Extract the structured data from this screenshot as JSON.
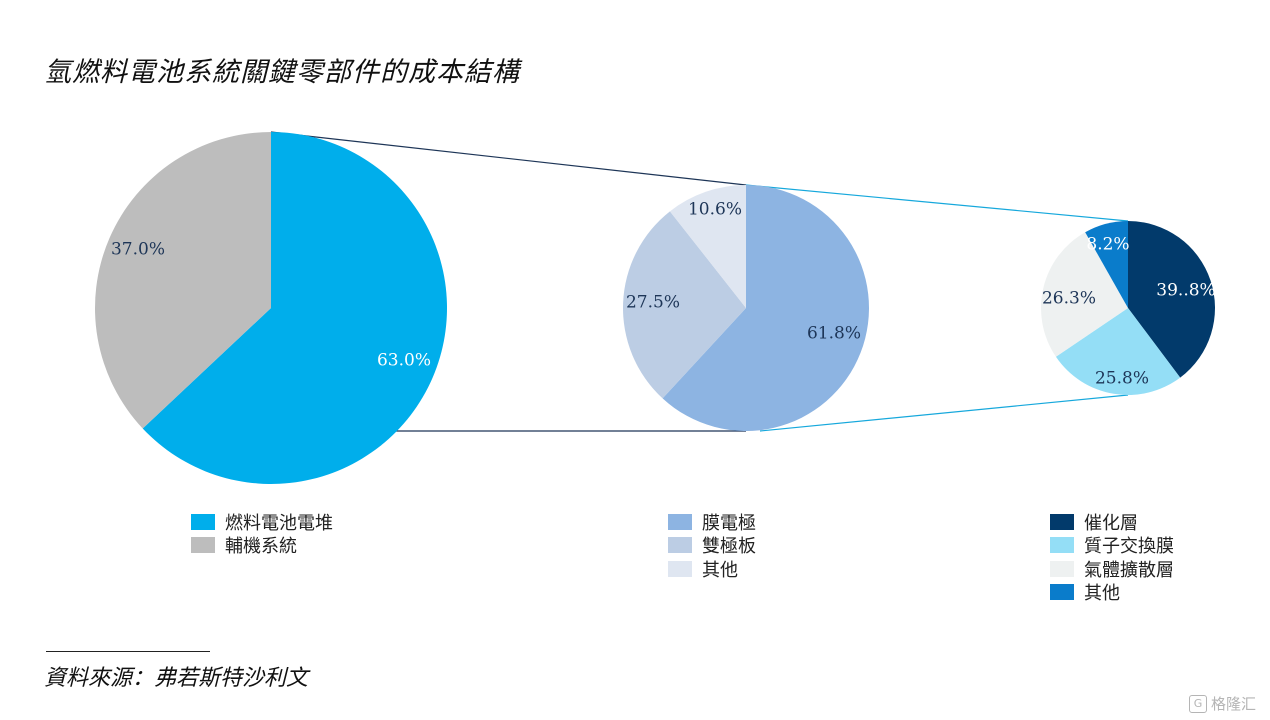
{
  "title": "氫燃料電池系統關鍵零部件的成本結構",
  "source": "資料來源：弗若斯特沙利文",
  "watermark": "格隆汇",
  "chart_data": [
    {
      "type": "pie",
      "slices": [
        {
          "label": "燃料電池電堆",
          "value": 63.0,
          "display": "63.0%",
          "color": "#00aeeb"
        },
        {
          "label": "輔機系統",
          "value": 37.0,
          "display": "37.0%",
          "color": "#bdbdbd"
        }
      ]
    },
    {
      "type": "pie",
      "slices": [
        {
          "label": "膜電極",
          "value": 61.8,
          "display": "61.8%",
          "color": "#8db4e2"
        },
        {
          "label": "雙極板",
          "value": 27.5,
          "display": "27.5%",
          "color": "#bccde4"
        },
        {
          "label": "其他",
          "value": 10.6,
          "display": "10.6%",
          "color": "#dfe6f1"
        }
      ]
    },
    {
      "type": "pie",
      "slices": [
        {
          "label": "催化層",
          "value": 39.8,
          "display": "39..8%",
          "color": "#023a6b"
        },
        {
          "label": "質子交換膜",
          "value": 25.8,
          "display": "25.8%",
          "color": "#94def6"
        },
        {
          "label": "氣體擴散層",
          "value": 26.3,
          "display": "26.3%",
          "color": "#eef1f1"
        },
        {
          "label": "其他",
          "value": 8.2,
          "display": "8.2%",
          "color": "#0a7ccb"
        }
      ]
    }
  ]
}
